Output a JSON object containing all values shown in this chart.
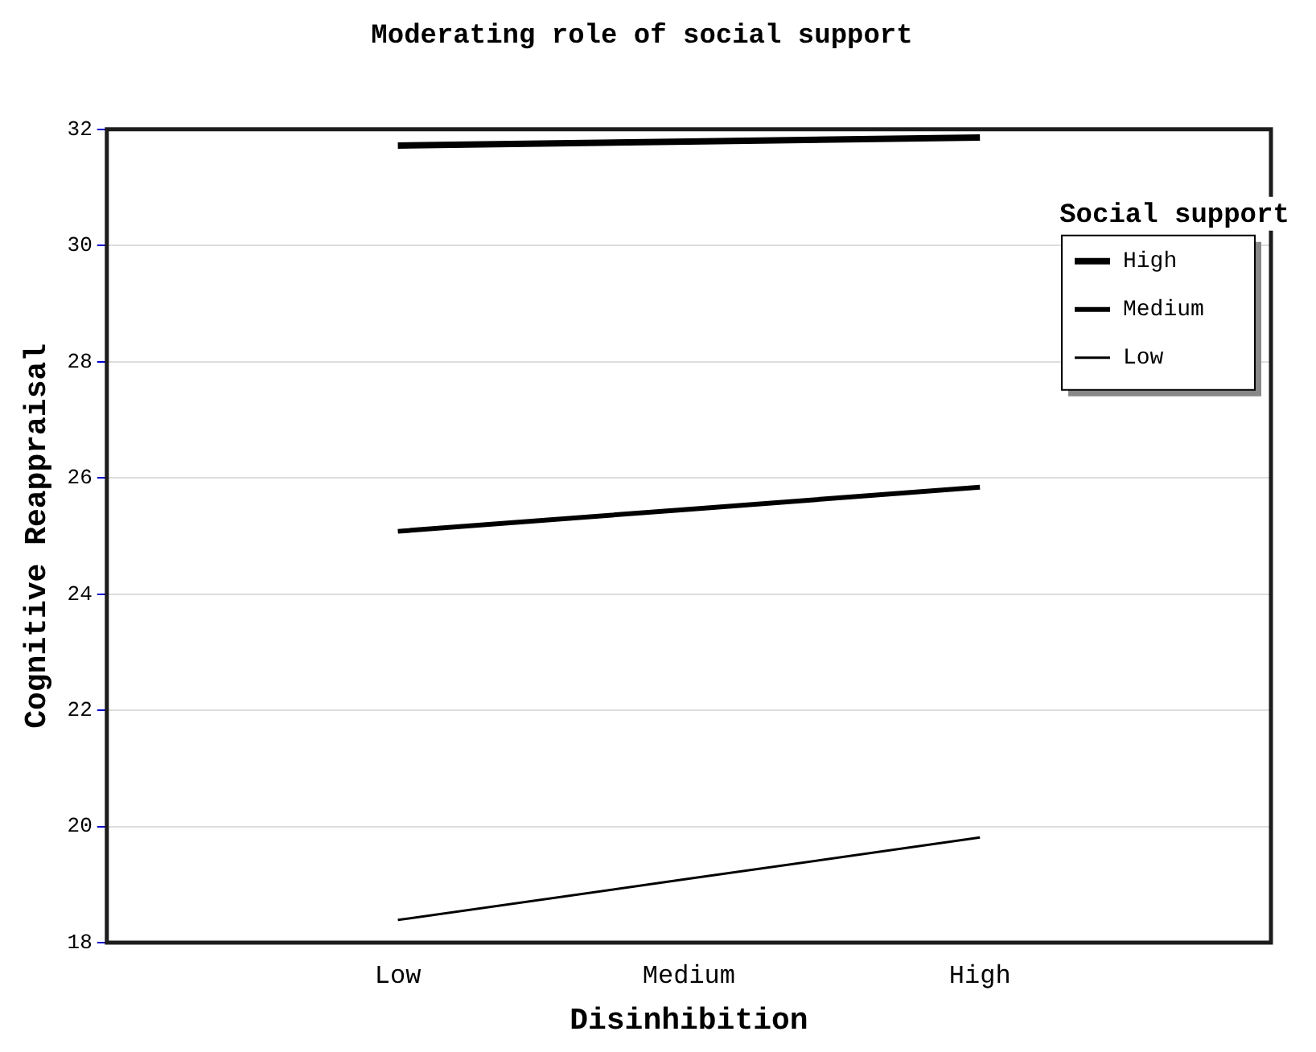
{
  "chart_data": {
    "type": "line",
    "title": "Moderating role of social support",
    "xlabel": "Disinhibition",
    "ylabel": "Cognitive Reappraisal",
    "legend_title": "Social support",
    "categories": [
      "Low",
      "Medium",
      "High"
    ],
    "series": [
      {
        "name": "High",
        "color": "#000000",
        "values": [
          31.72,
          31.79,
          31.86
        ]
      },
      {
        "name": "Medium",
        "color": "#000000",
        "values": [
          25.08,
          25.46,
          25.84
        ]
      },
      {
        "name": "Low",
        "color": "#000000",
        "values": [
          18.39,
          19.1,
          19.81
        ]
      }
    ],
    "ylim": [
      18,
      32
    ],
    "yticks": [
      18,
      20,
      22,
      24,
      26,
      28,
      30,
      32
    ],
    "grid": "y",
    "legend": "top right",
    "marker": "none",
    "line_style": "solid"
  }
}
